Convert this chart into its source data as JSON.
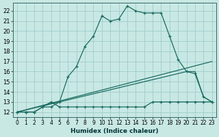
{
  "xlabel": "Humidex (Indice chaleur)",
  "bg_color": "#c8e8e4",
  "grid_color": "#a0ccca",
  "line_color": "#1a6b60",
  "xlim": [
    -0.5,
    23.5
  ],
  "ylim": [
    11.5,
    22.8
  ],
  "yticks": [
    12,
    13,
    14,
    15,
    16,
    17,
    18,
    19,
    20,
    21,
    22
  ],
  "xticks": [
    0,
    1,
    2,
    3,
    4,
    5,
    6,
    7,
    8,
    9,
    10,
    11,
    12,
    13,
    14,
    15,
    16,
    17,
    18,
    19,
    20,
    21,
    22,
    23
  ],
  "curve1_x": [
    0,
    1,
    2,
    3,
    4,
    5,
    6,
    7,
    8,
    9,
    10,
    11,
    12,
    13,
    14,
    15,
    16,
    17,
    18,
    19,
    20,
    21,
    22,
    23
  ],
  "curve1_y": [
    12.0,
    12.0,
    12.0,
    12.5,
    12.5,
    13.0,
    15.5,
    16.5,
    18.5,
    19.5,
    21.5,
    21.0,
    21.2,
    22.5,
    22.0,
    21.8,
    21.8,
    21.8,
    19.5,
    17.2,
    16.0,
    15.8,
    13.5,
    13.0
  ],
  "curve2_x": [
    0,
    1,
    2,
    3,
    4,
    5,
    6,
    7,
    8,
    9,
    10,
    11,
    12,
    13,
    14,
    15,
    16,
    17,
    18,
    19,
    20,
    21,
    22,
    23
  ],
  "curve2_y": [
    12.0,
    12.0,
    12.0,
    12.5,
    13.0,
    12.5,
    12.5,
    12.5,
    12.5,
    12.5,
    12.5,
    12.5,
    12.5,
    12.5,
    12.5,
    12.5,
    13.0,
    13.0,
    13.0,
    13.0,
    13.0,
    13.0,
    13.0,
    13.0
  ],
  "curve3_x": [
    0,
    20,
    21,
    22,
    23
  ],
  "curve3_y": [
    12.0,
    16.0,
    16.0,
    13.5,
    13.0
  ],
  "curve4_x": [
    0,
    23
  ],
  "curve4_y": [
    12.0,
    17.0
  ]
}
